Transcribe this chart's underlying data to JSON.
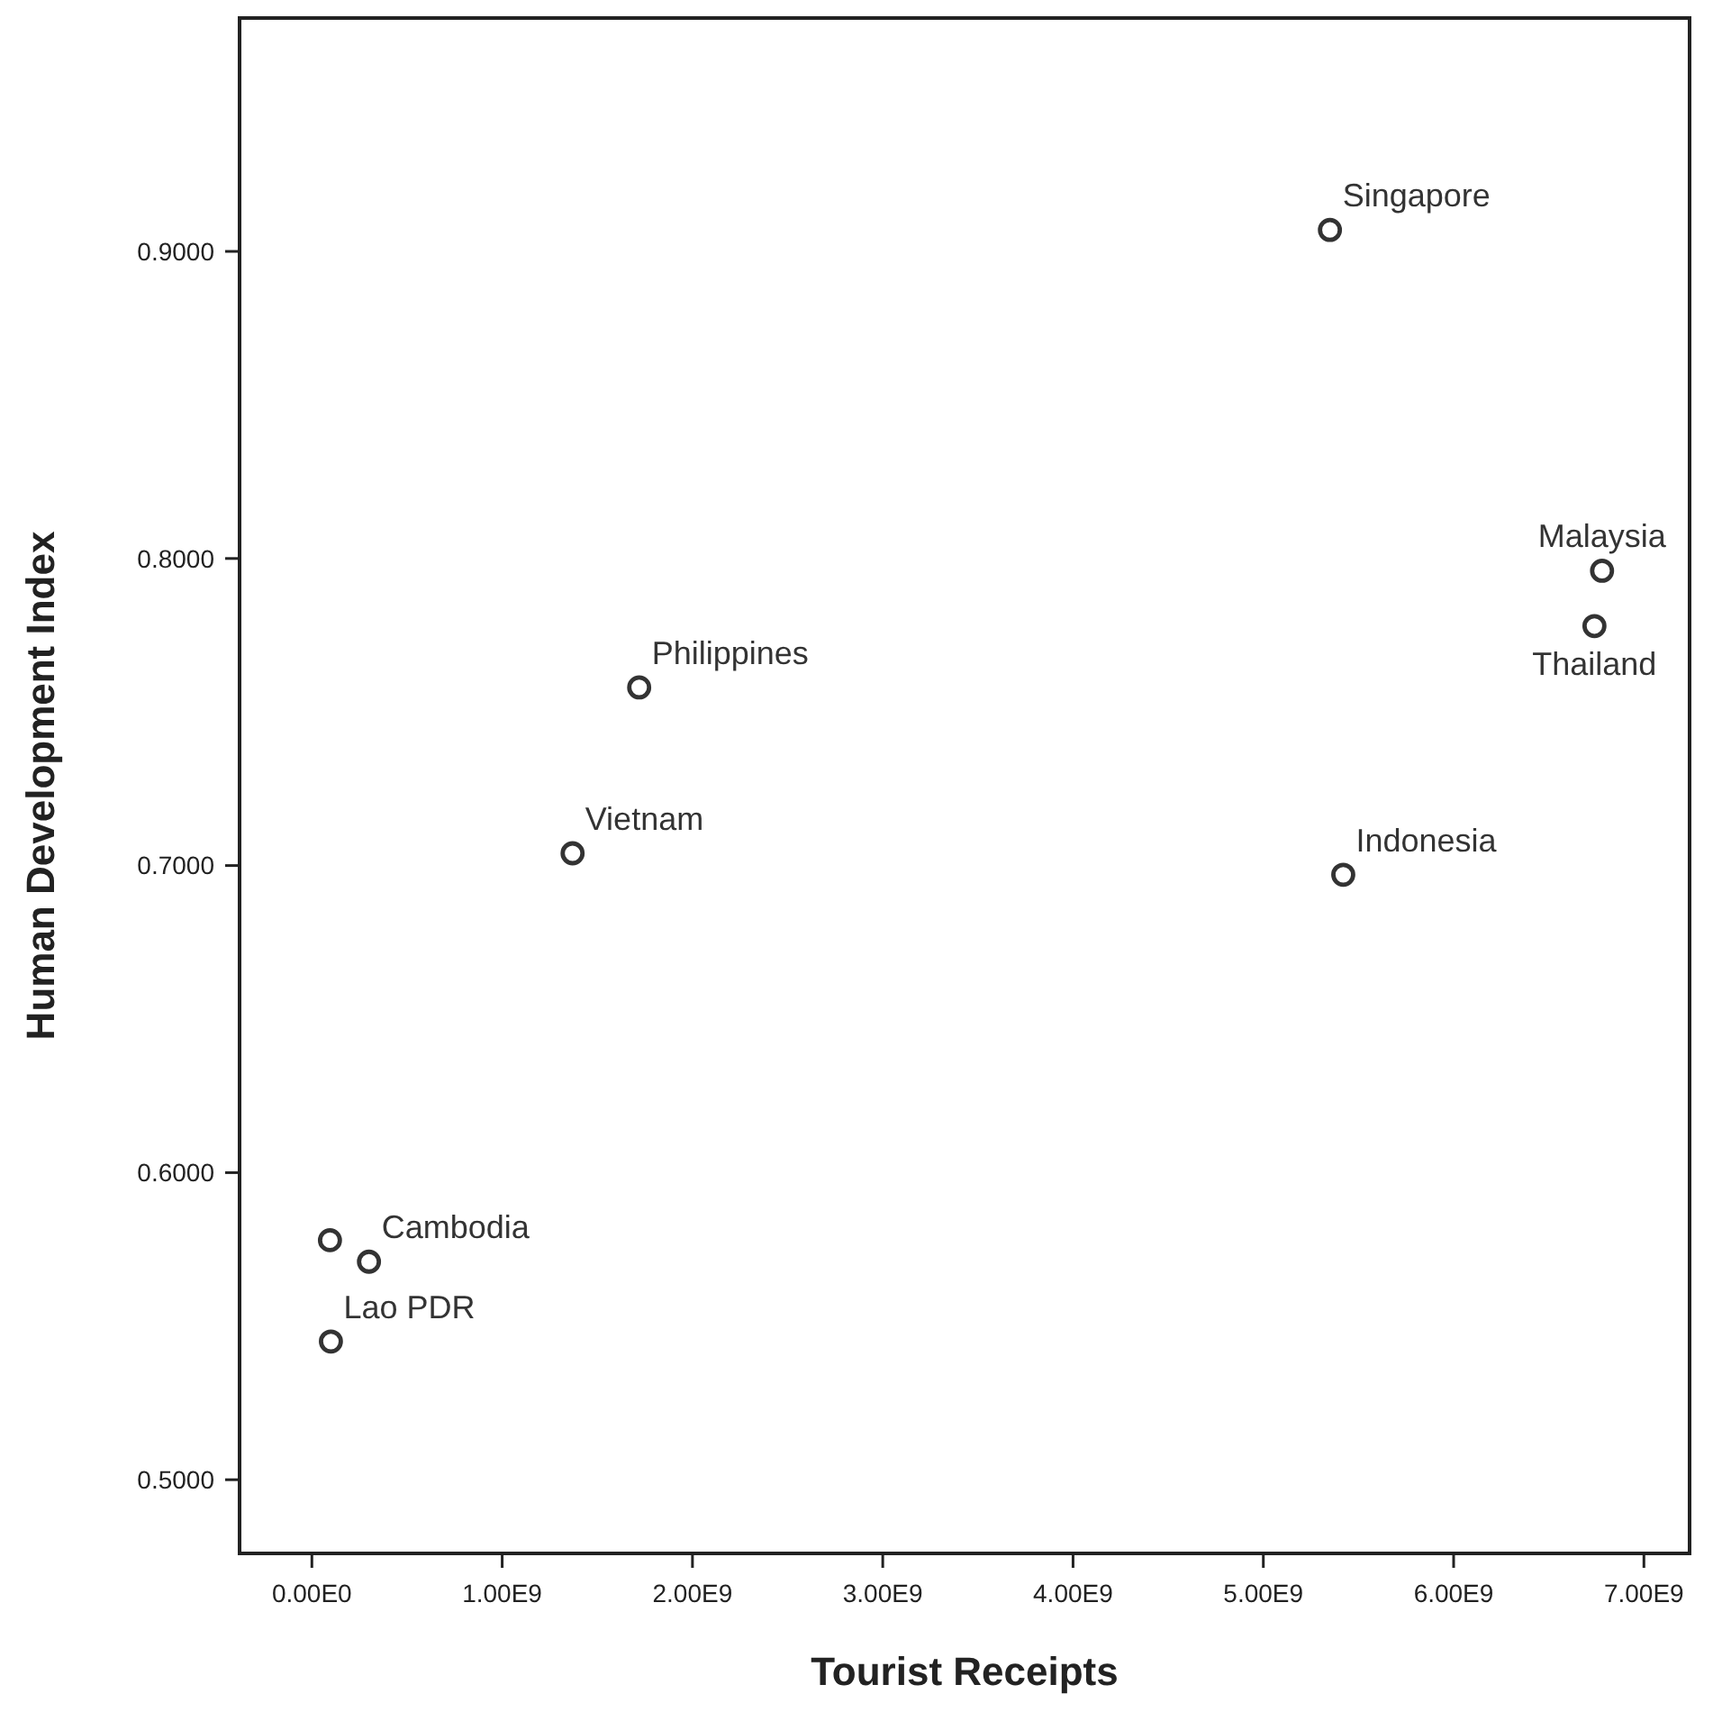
{
  "chart_data": {
    "type": "scatter",
    "xlabel": "Tourist Receipts",
    "ylabel": "Human Development Index",
    "marker": "circle",
    "grid": false,
    "xlim": [
      -380000000,
      7240000000
    ],
    "xticks": [
      {
        "value": 0,
        "label": "0.00E0"
      },
      {
        "value": 1000000000,
        "label": "1.00E9"
      },
      {
        "value": 2000000000,
        "label": "2.00E9"
      },
      {
        "value": 3000000000,
        "label": "3.00E9"
      },
      {
        "value": 4000000000,
        "label": "4.00E9"
      },
      {
        "value": 5000000000,
        "label": "5.00E9"
      },
      {
        "value": 6000000000,
        "label": "6.00E9"
      },
      {
        "value": 7000000000,
        "label": "7.00E9"
      }
    ],
    "ylim": [
      0.476,
      0.976
    ],
    "yticks": [
      {
        "value": 0.5,
        "label": "0.5000"
      },
      {
        "value": 0.6,
        "label": "0.6000"
      },
      {
        "value": 0.7,
        "label": "0.7000"
      },
      {
        "value": 0.8,
        "label": "0.8000"
      },
      {
        "value": 0.9,
        "label": "0.9000"
      }
    ],
    "series": [
      {
        "color": "#333333",
        "x": [
          95000000,
          300000000,
          100000000,
          1370000000,
          1720000000,
          5350000000,
          6780000000,
          6740000000,
          5420000000
        ],
        "values": [
          0.578,
          0.571,
          0.545,
          0.704,
          0.758,
          0.907,
          0.796,
          0.778,
          0.697
        ]
      }
    ],
    "annotations": [
      {
        "text": "Cambodia",
        "x": 300000000,
        "y": 0.571
      },
      {
        "text": "Lao PDR",
        "x": 100000000,
        "y": 0.545
      },
      {
        "text": "Vietnam",
        "x": 1370000000,
        "y": 0.704
      },
      {
        "text": "Philippines",
        "x": 1720000000,
        "y": 0.758
      },
      {
        "text": "Singapore",
        "x": 5350000000,
        "y": 0.907
      },
      {
        "text": "Malaysia",
        "x": 6780000000,
        "y": 0.796
      },
      {
        "text": "Thailand",
        "x": 6740000000,
        "y": 0.778
      },
      {
        "text": "Indonesia",
        "x": 5420000000,
        "y": 0.697
      }
    ]
  }
}
